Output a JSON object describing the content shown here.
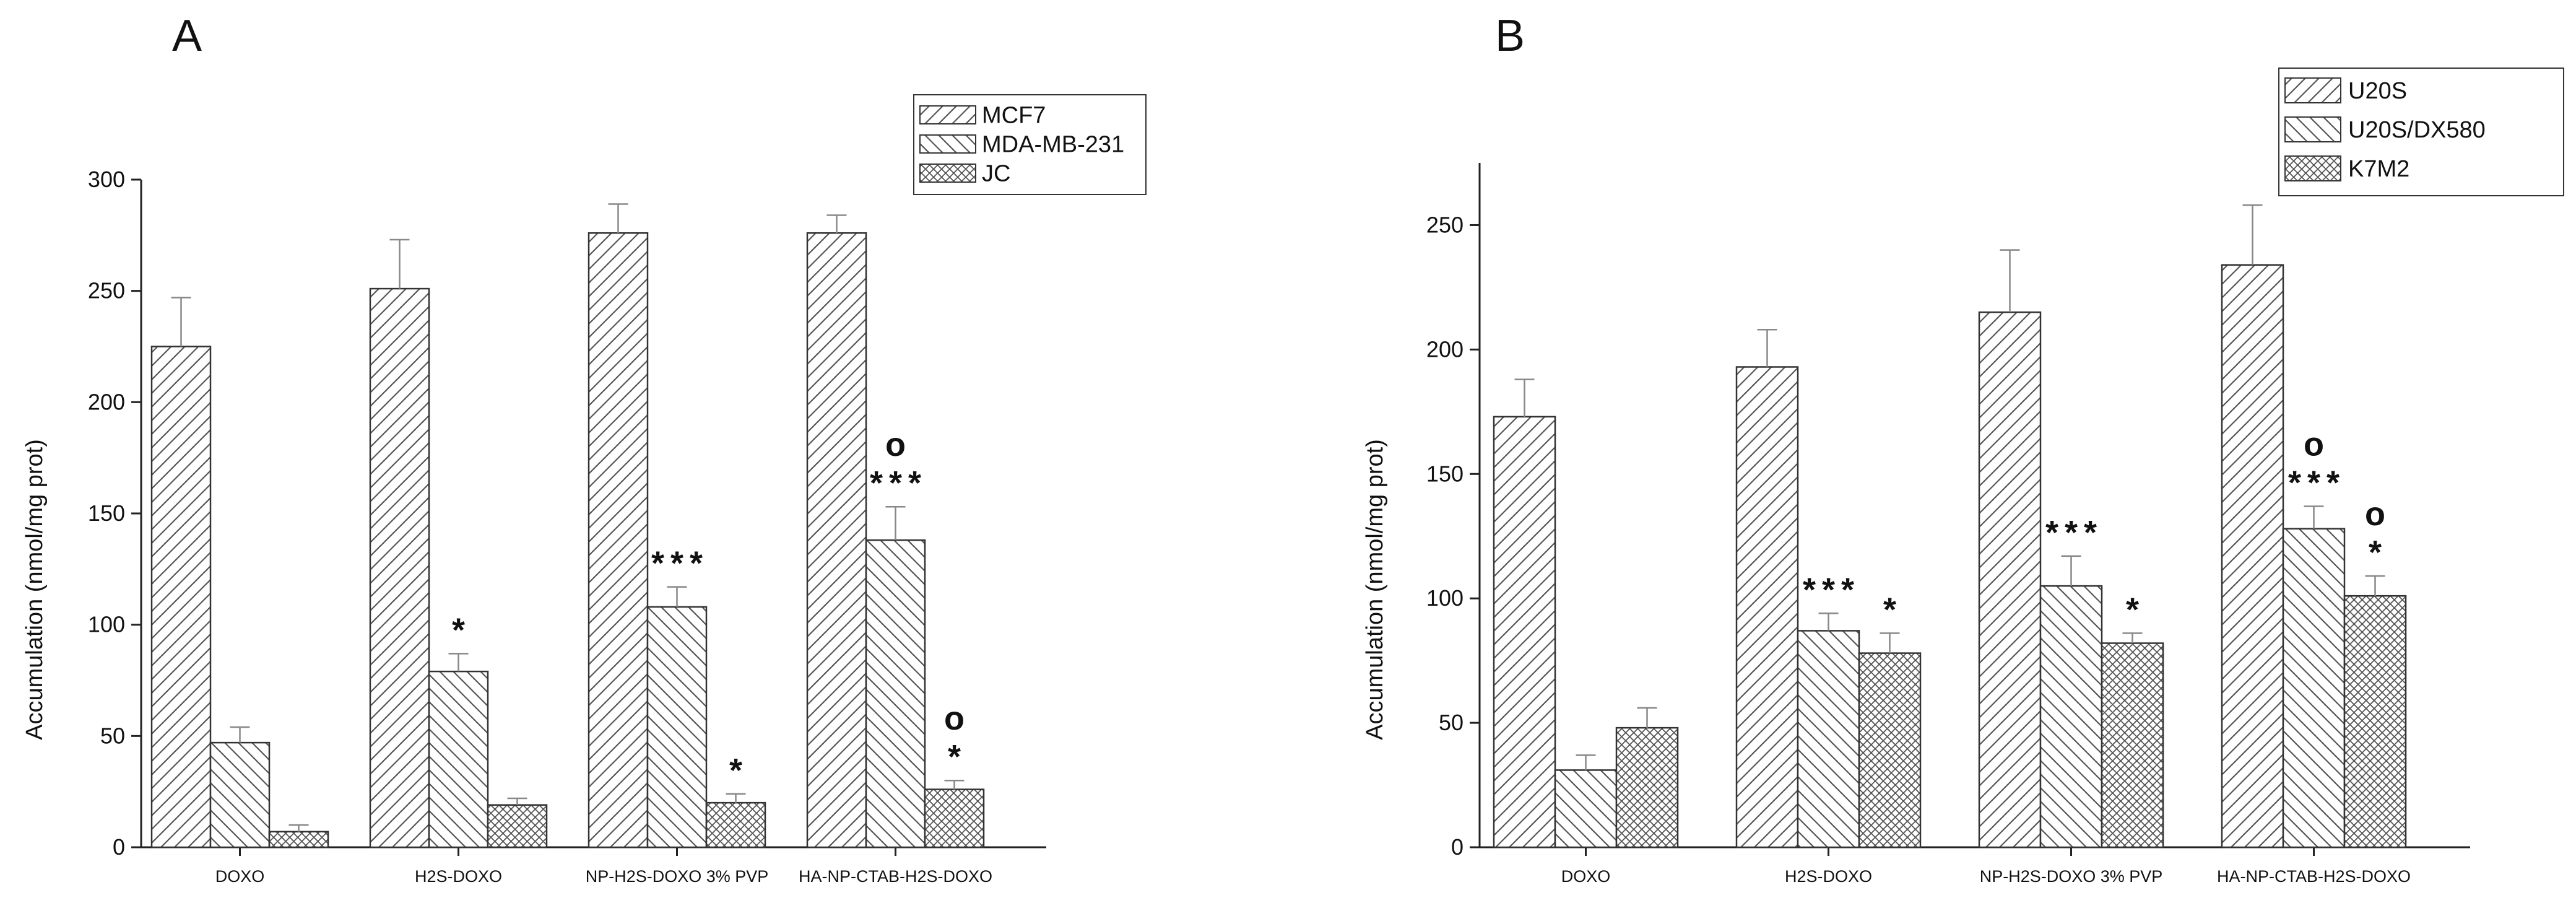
{
  "chart_data": [
    {
      "type": "bar",
      "panel": "A",
      "title": "",
      "xlabel": "",
      "ylabel": "Accumulation    (nmol/mg prot)",
      "ylim": [
        0,
        300
      ],
      "yticks": [
        0,
        50,
        100,
        150,
        200,
        250,
        300
      ],
      "categories": [
        "DOXO",
        "H2S-DOXO",
        "NP-H2S-DOXO 3% PVP",
        "HA-NP-CTAB-H2S-DOXO"
      ],
      "legend_position": "top-right",
      "series": [
        {
          "name": "MCF7",
          "values": [
            225,
            251,
            276,
            276
          ],
          "errors": [
            22,
            22,
            13,
            8
          ]
        },
        {
          "name": "MDA-MB-231",
          "values": [
            47,
            79,
            108,
            138
          ],
          "errors": [
            7,
            8,
            9,
            15
          ]
        },
        {
          "name": "JC",
          "values": [
            7,
            19,
            20,
            26
          ],
          "errors": [
            3,
            3,
            4,
            4
          ]
        }
      ],
      "annotations": [
        {
          "category": 1,
          "series": 1,
          "lines": [
            "*"
          ]
        },
        {
          "category": 2,
          "series": 1,
          "lines": [
            "***"
          ]
        },
        {
          "category": 2,
          "series": 2,
          "lines": [
            "*"
          ]
        },
        {
          "category": 3,
          "series": 1,
          "lines": [
            "o",
            "***"
          ]
        },
        {
          "category": 3,
          "series": 2,
          "lines": [
            "o",
            "*"
          ]
        }
      ]
    },
    {
      "type": "bar",
      "panel": "B",
      "title": "",
      "xlabel": "",
      "ylabel": "Accumulation    (nmol/mg prot)",
      "ylim": [
        0,
        275
      ],
      "yticks": [
        0,
        50,
        100,
        150,
        200,
        250
      ],
      "categories": [
        "DOXO",
        "H2S-DOXO",
        "NP-H2S-DOXO 3% PVP",
        "HA-NP-CTAB-H2S-DOXO"
      ],
      "legend_position": "top-right",
      "series": [
        {
          "name": "U20S",
          "values": [
            173,
            193,
            215,
            234
          ],
          "errors": [
            15,
            15,
            25,
            24
          ]
        },
        {
          "name": "U20S/DX580",
          "values": [
            31,
            87,
            105,
            128
          ],
          "errors": [
            6,
            7,
            12,
            9
          ]
        },
        {
          "name": "K7M2",
          "values": [
            48,
            78,
            82,
            101
          ],
          "errors": [
            8,
            8,
            4,
            8
          ]
        }
      ],
      "annotations": [
        {
          "category": 1,
          "series": 1,
          "lines": [
            "***"
          ]
        },
        {
          "category": 1,
          "series": 2,
          "lines": [
            "*"
          ]
        },
        {
          "category": 2,
          "series": 1,
          "lines": [
            "***"
          ]
        },
        {
          "category": 2,
          "series": 2,
          "lines": [
            "*"
          ]
        },
        {
          "category": 3,
          "series": 1,
          "lines": [
            "o",
            "***"
          ]
        },
        {
          "category": 3,
          "series": 2,
          "lines": [
            "o",
            "*"
          ]
        }
      ]
    }
  ]
}
